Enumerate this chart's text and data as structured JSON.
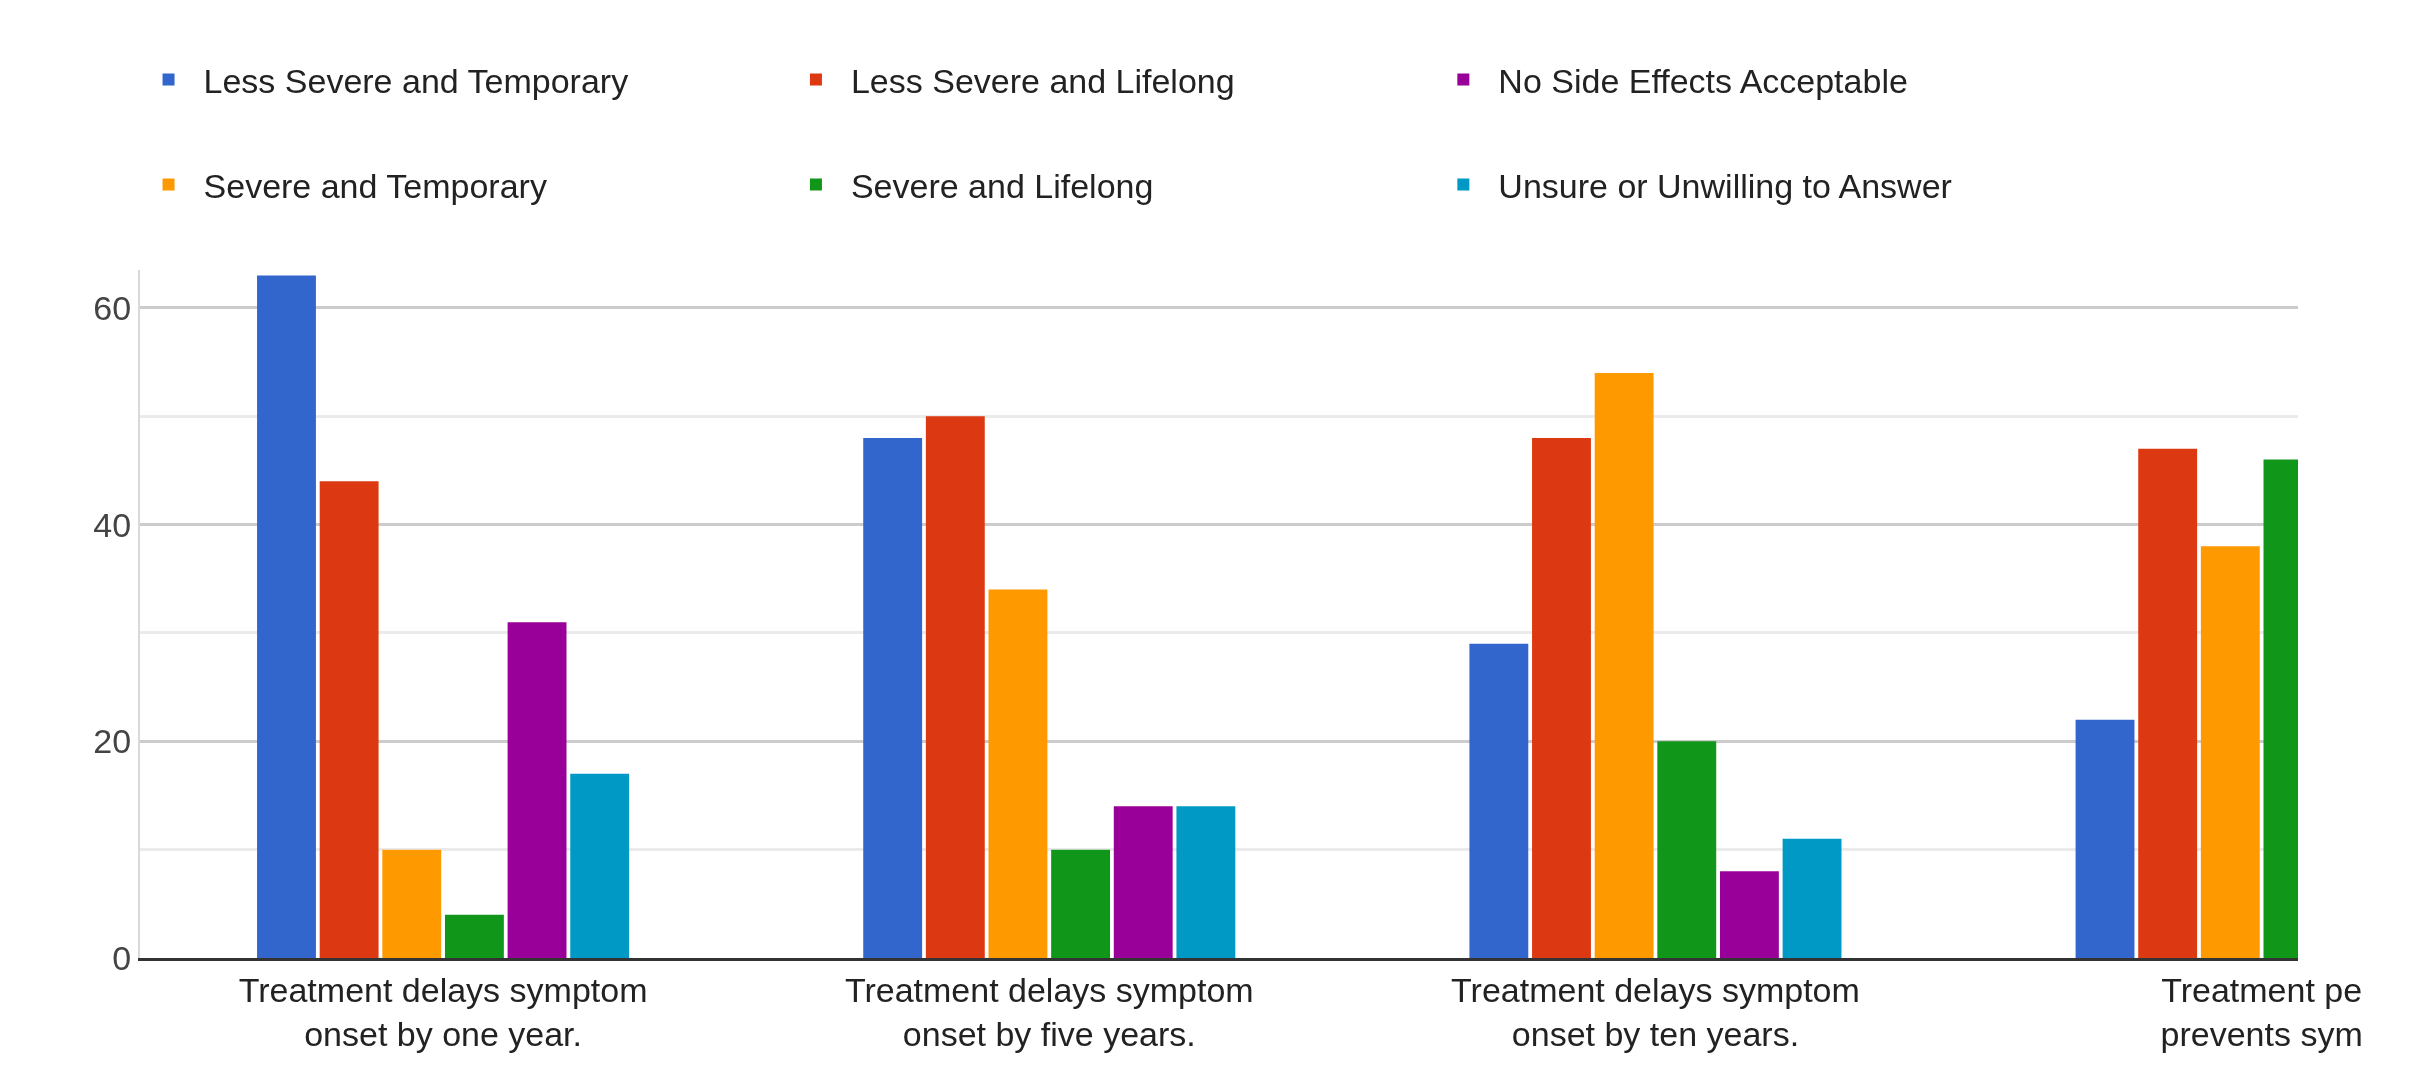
{
  "chart_data": {
    "type": "bar",
    "categories": [
      "Treatment delays symptom\nonset by one year.",
      "Treatment delays symptom\nonset by five years.",
      "Treatment delays symptom\nonset by ten years.",
      "Treatment pe\nprevents sym"
    ],
    "series": [
      {
        "name": "Less Severe and Temporary",
        "color": "#3366cc",
        "values": [
          63,
          48,
          29,
          22
        ]
      },
      {
        "name": "Less Severe and Lifelong",
        "color": "#dc3912",
        "values": [
          44,
          50,
          48,
          47
        ]
      },
      {
        "name": "Severe and Temporary",
        "color": "#ff9900",
        "values": [
          10,
          34,
          54,
          38
        ]
      },
      {
        "name": "Severe and Lifelong",
        "color": "#109618",
        "values": [
          4,
          10,
          20,
          46
        ]
      },
      {
        "name": "No Side Effects Acceptable",
        "color": "#990099",
        "values": [
          31,
          14,
          8,
          null
        ]
      },
      {
        "name": "Unsure or Unwilling to Answer",
        "color": "#0099c6",
        "values": [
          17,
          14,
          11,
          null
        ]
      }
    ],
    "ylim": [
      0,
      63.5
    ],
    "yticks": [
      0,
      20,
      40,
      60
    ],
    "grid": "y",
    "legend": "top"
  }
}
